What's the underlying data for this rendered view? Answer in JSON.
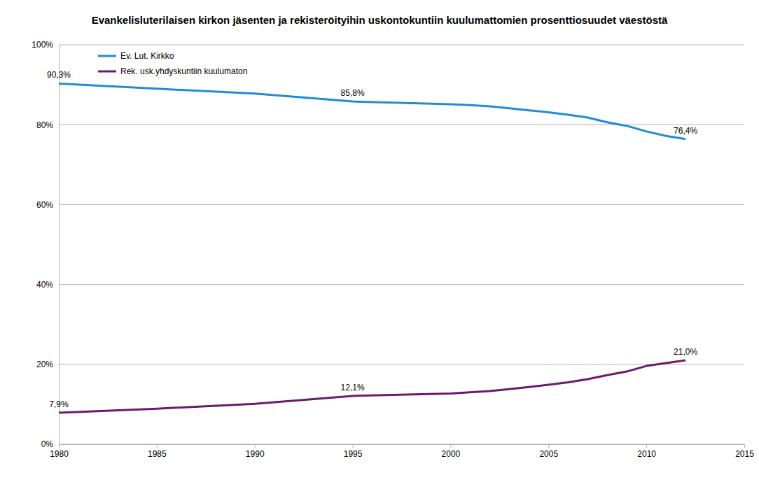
{
  "chart_data": {
    "type": "line",
    "title": "Evankelisluterilaisen kirkon jäsenten ja rekisteröityihin uskontokuntiin kuulumattomien prosenttiosuudet väestöstä",
    "x": [
      1980,
      1985,
      1990,
      1995,
      2000,
      2001,
      2002,
      2003,
      2004,
      2005,
      2006,
      2007,
      2008,
      2009,
      2010,
      2011,
      2012
    ],
    "series": [
      {
        "name": "Ev. Lut. Kirkko",
        "color": "#1f8dd6",
        "values": [
          90.3,
          89.0,
          87.8,
          85.8,
          85.1,
          84.9,
          84.6,
          84.1,
          83.6,
          83.1,
          82.5,
          81.8,
          80.6,
          79.7,
          78.3,
          77.2,
          76.4
        ],
        "value_labels": [
          "90,3%",
          null,
          null,
          "85,8%",
          null,
          null,
          null,
          null,
          null,
          null,
          null,
          null,
          null,
          null,
          null,
          null,
          "76,4%"
        ]
      },
      {
        "name": "Rek. usk.yhdyskuntiin kuulumaton",
        "color": "#6a1b6a",
        "values": [
          7.9,
          8.9,
          10.1,
          12.1,
          12.7,
          13.0,
          13.3,
          13.8,
          14.3,
          14.9,
          15.5,
          16.3,
          17.3,
          18.2,
          19.6,
          20.3,
          21.0
        ],
        "value_labels": [
          "7,9%",
          null,
          null,
          "12,1%",
          null,
          null,
          null,
          null,
          null,
          null,
          null,
          null,
          null,
          null,
          null,
          null,
          "21,0%"
        ]
      }
    ],
    "xlim": [
      1980,
      2015
    ],
    "xticks": [
      1980,
      1985,
      1990,
      1995,
      2000,
      2005,
      2010,
      2015
    ],
    "ylim": [
      0,
      100
    ],
    "yticks": [
      {
        "value": 0,
        "label": "0%"
      },
      {
        "value": 20,
        "label": "20%"
      },
      {
        "value": 40,
        "label": "40%"
      },
      {
        "value": 60,
        "label": "60%"
      },
      {
        "value": 80,
        "label": "80%"
      },
      {
        "value": 100,
        "label": "100%"
      }
    ],
    "grid": true,
    "legend": "top-left",
    "data_labels": true
  }
}
